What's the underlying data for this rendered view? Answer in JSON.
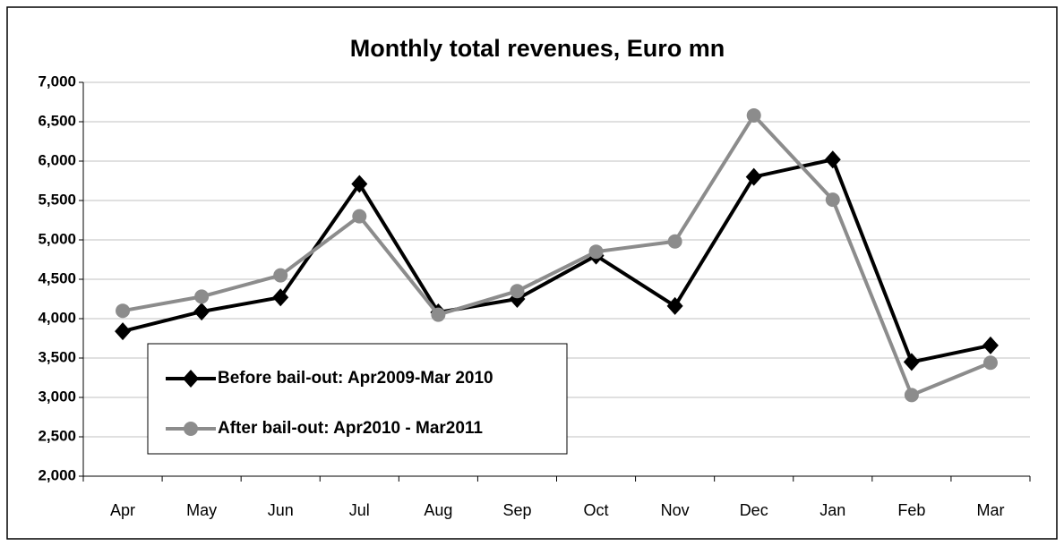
{
  "chart_data": {
    "type": "line",
    "title": "Monthly total revenues, Euro mn",
    "categories": [
      "Apr",
      "May",
      "Jun",
      "Jul",
      "Aug",
      "Sep",
      "Oct",
      "Nov",
      "Dec",
      "Jan",
      "Feb",
      "Mar"
    ],
    "series": [
      {
        "name": "Before bail-out: Apr2009-Mar 2010",
        "color": "#000000",
        "marker": "diamond",
        "values": [
          3840,
          4090,
          4270,
          5710,
          4080,
          4250,
          4800,
          4160,
          5800,
          6020,
          3450,
          3660
        ]
      },
      {
        "name": "After bail-out: Apr2010 - Mar2011",
        "color": "#8c8c8c",
        "marker": "circle",
        "values": [
          4100,
          4280,
          4550,
          5300,
          4050,
          4350,
          4850,
          4980,
          6580,
          5510,
          3030,
          3440
        ]
      }
    ],
    "ylim": [
      2000,
      7000
    ],
    "yticks": [
      {
        "value": 2000,
        "label": "2,000"
      },
      {
        "value": 2500,
        "label": "2,500"
      },
      {
        "value": 3000,
        "label": "3,000"
      },
      {
        "value": 3500,
        "label": "3,500"
      },
      {
        "value": 4000,
        "label": "4,000"
      },
      {
        "value": 4500,
        "label": "4,500"
      },
      {
        "value": 5000,
        "label": "5,000"
      },
      {
        "value": 5500,
        "label": "5,500"
      },
      {
        "value": 6000,
        "label": "6,000"
      },
      {
        "value": 6500,
        "label": "6,500"
      },
      {
        "value": 7000,
        "label": "7,000"
      }
    ],
    "grid": true,
    "legend": "lower-left"
  }
}
